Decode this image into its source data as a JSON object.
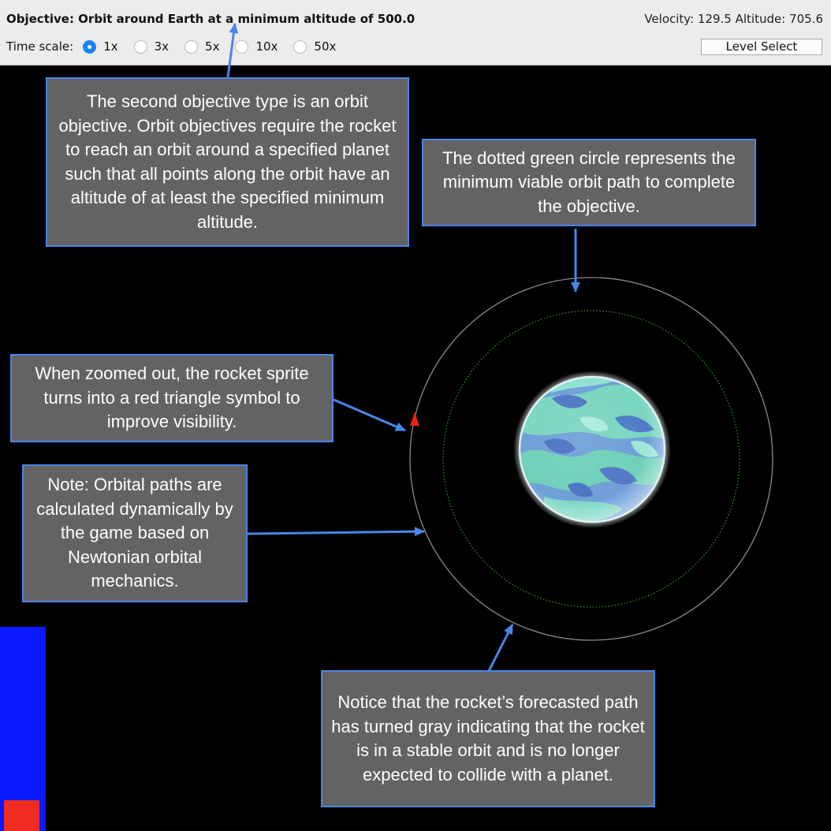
{
  "header": {
    "objective": "Objective: Orbit around Earth at a minimum altitude of 500.0",
    "telemetry": "Velocity: 129.5 Altitude: 705.6",
    "time_scale_label": "Time scale:",
    "time_scale_options": [
      "1x",
      "3x",
      "5x",
      "10x",
      "50x"
    ],
    "time_scale_selected": "1x",
    "level_select_label": "Level Select"
  },
  "callouts": {
    "orbit_objective": "The second objective type is an orbit objective. Orbit objectives require the rocket to reach an orbit around a specified planet such that all points along the orbit have an altitude of at least the specified minimum altitude.",
    "green_circle": "The dotted green circle represents the minimum viable orbit path to complete the objective.",
    "red_triangle": "When zoomed out, the rocket sprite turns into a red triangle symbol to improve visibility.",
    "orbital_paths": "Note: Orbital paths are calculated dynamically by the game based on Newtonian orbital mechanics.",
    "gray_path": "Notice that the rocket’s forecasted path has turned gray indicating that the rocket is in a stable orbit and is no longer expected to collide with a planet."
  },
  "scene": {
    "planet": "Earth",
    "colors": {
      "orbit_path": "#8a8a8a",
      "min_orbit": "#2fae2f",
      "rocket": "#e8231c",
      "arrow": "#4a86e8",
      "fuel_bar": "#0a19ff",
      "fuel_warning": "#ef2b22"
    }
  }
}
